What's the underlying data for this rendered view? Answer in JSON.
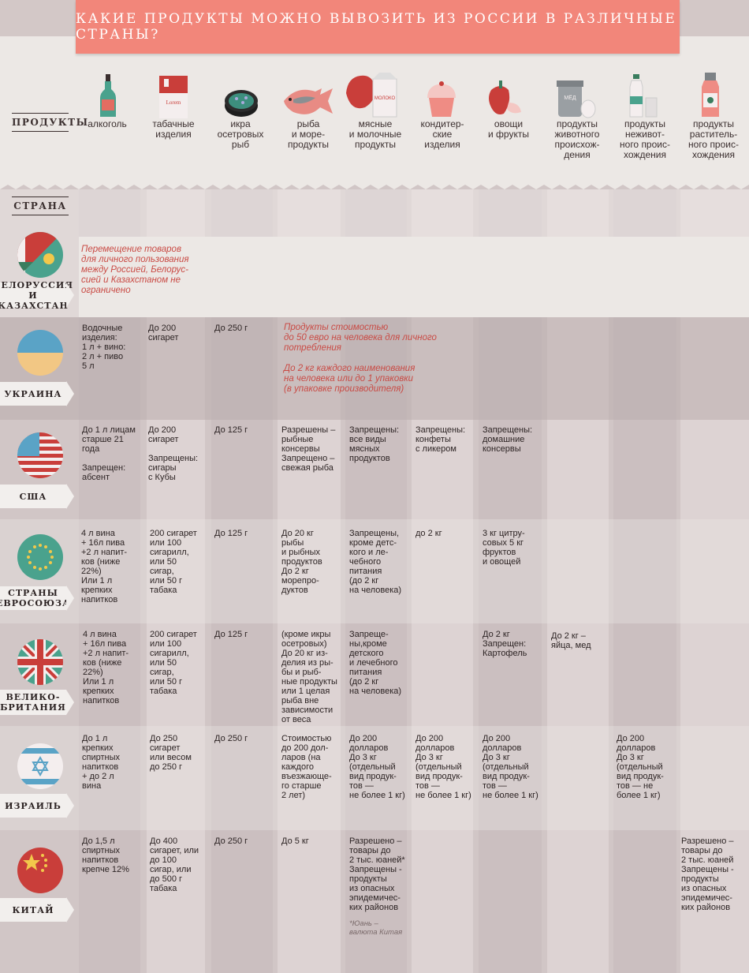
{
  "title": "КАКИЕ ПРОДУКТЫ МОЖНО ВЫВОЗИТЬ ИЗ РОССИИ В РАЗЛИЧНЫЕ СТРАНЫ?",
  "labels": {
    "products": "ПРОДУКТЫ",
    "country": "СТРАНА"
  },
  "products": [
    {
      "name": "алкоголь",
      "icon": "bottle-icon"
    },
    {
      "name": "табачные\nизделия",
      "icon": "cigarette-pack-icon",
      "pack_text": "Lorem"
    },
    {
      "name": "икра\nосетровых\nрыб",
      "icon": "caviar-can-icon"
    },
    {
      "name": "рыба\nи море-\nпродукты",
      "icon": "fish-icon"
    },
    {
      "name": "мясные\nи молочные\nпродукты",
      "icon": "meat-milk-icon",
      "pack_text": "МОЛОКО"
    },
    {
      "name": "кондитер-\nские\nизделия",
      "icon": "cupcake-icon"
    },
    {
      "name": "овощи\nи фрукты",
      "icon": "pepper-icon"
    },
    {
      "name": "продукты\nживотного\nпроисхож-\nдения",
      "icon": "honey-eggs-icon",
      "pack_text": "МЁД"
    },
    {
      "name": "продукты\nнеживот-\nного проис-\nхождения",
      "icon": "water-salt-icon"
    },
    {
      "name": "продукты\nраститель-\nного проис-\nхождения",
      "icon": "oil-bottle-icon"
    }
  ],
  "countries": [
    {
      "name": "БЕЛОРУССИЯ\nИ КАЗАХСТАН",
      "flag": "belarus-kazakhstan-flag-icon",
      "note": "Перемещение товаров\nдля личного пользования\nмежду Россией, Белорус-\nсией и Казахстаном не\nограничено"
    },
    {
      "name": "УКРАИНА",
      "flag": "ukraine-flag-icon",
      "cells": [
        "Водочные\nизделия:\n1 л + вино:\n2 л + пиво\n5 л",
        "До 200\nсигарет",
        "До 250 г"
      ],
      "note1": "Продукты стоимостью\nдо 50 евро на человека для личного\nпотребления",
      "note2": "До 2 кг каждого наименования\nна человека или до 1 упаковки\n(в упаковке производителя)"
    },
    {
      "name": "США",
      "flag": "usa-flag-icon",
      "cells": [
        "До 1 л лицам\nстарше 21\nгода\n\nЗапрещен:\nабсент",
        "До 200\nсигарет\n\nЗапрещены:\nсигары\nс Кубы",
        "До 125 г",
        "Разрешены –\nрыбные\nконсервы\nЗапрещено –\nсвежая рыба",
        "Запрещены:\nвсе виды\nмясных\nпродуктов",
        "Запрещены:\nконфеты\nс ликером",
        "Запрещены:\nдомашние\nконсервы"
      ]
    },
    {
      "name": "СТРАНЫ\nЕВРОСОЮЗА",
      "flag": "eu-flag-icon",
      "cells": [
        "4 л вина\n+ 16л пива\n+2 л напит-\nков (ниже\n22%)\nИли 1 л\nкрепких\nнапитков",
        "200 сигарет\nили 100\nсигарилл,\nили 50\nсигар,\nили 50 г\nтабака",
        "До 125 г",
        "До 20 кг\nрыбы\nи рыбных\nпродуктов\nДо 2 кг\nморепро-\nдуктов",
        "Запрещены,\nкроме детс-\nкого и ле-\nчебного\nпитания\n(до 2 кг\nна человека)",
        "до 2 кг",
        "3 кг цитру-\nсовых 5 кг\nфруктов\nи овощей"
      ]
    },
    {
      "name": "ВЕЛИКО-\nБРИТАНИЯ",
      "flag": "uk-flag-icon",
      "cells": [
        "4 л вина\n+ 16л пива\n+2 л напит-\nков (ниже\n22%)\nИли 1 л\nкрепких\nнапитков",
        "200 сигарет\nили 100\nсигарилл,\nили 50\nсигар,\nили 50 г\nтабака",
        "До 125 г",
        "(кроме икры\nосетровых)\nДо 20 кг из-\nделия из ры-\nбы и рыб-\nные продукты\nили 1 целая\nрыба вне\nзависимости\nот веса",
        "Запреще-\nны,кроме\nдетского\nи лечебного\nпитания\n(до 2 кг\nна человека)",
        "",
        "До 2 кг\nЗапрещен:\nКартофель",
        "До 2 кг –\nяйца, мед"
      ]
    },
    {
      "name": "ИЗРАИЛЬ",
      "flag": "israel-flag-icon",
      "cells": [
        "До 1 л\nкрепких\nспиртных\nнапитков\n+ до 2 л\nвина",
        "До 250\nсигарет\nили весом\nдо 250 г",
        "До 250 г",
        "Стоимостью\nдо 200 дол-\nларов (на\nкаждого\nвъезжающе-\nго старше\n2 лет)",
        "До 200\nдолларов\nДо 3 кг\n(отдельный\nвид продук-\nтов —\nне более 1 кг)",
        "До 200\nдолларов\nДо 3 кг\n(отдельный\nвид продук-\nтов —\nне более 1 кг)",
        "До 200\nдолларов\nДо 3 кг\n(отдельный\nвид продук-\nтов —\nне более 1 кг)",
        "",
        "До 200\nдолларов\nДо 3 кг\n(отдельный\nвид продук-\nтов — не\nболее 1 кг)"
      ]
    },
    {
      "name": "КИТАЙ",
      "flag": "china-flag-icon",
      "cells": [
        "До 1,5 л\nспиртных\nнапитков\nкрепче 12%",
        "До 400\nсигарет, или\nдо 100\nсигар, или\nдо 500 г\nтабака",
        "До 250 г",
        "До 5 кг",
        "Разрешено –\nтовары до\n2 тыс. юаней*\nЗапрещены -\nпродукты\nиз опасных\nэпидемичес-\nких районов",
        "",
        "",
        "",
        "",
        "Разрешено –\nтовары до\n2 тыс. юаней\nЗапрещены -\nпродукты\nиз опасных\nэпидемичес-\nких районов"
      ],
      "footnote": "*Юань –\nвалюта Китая"
    }
  ]
}
